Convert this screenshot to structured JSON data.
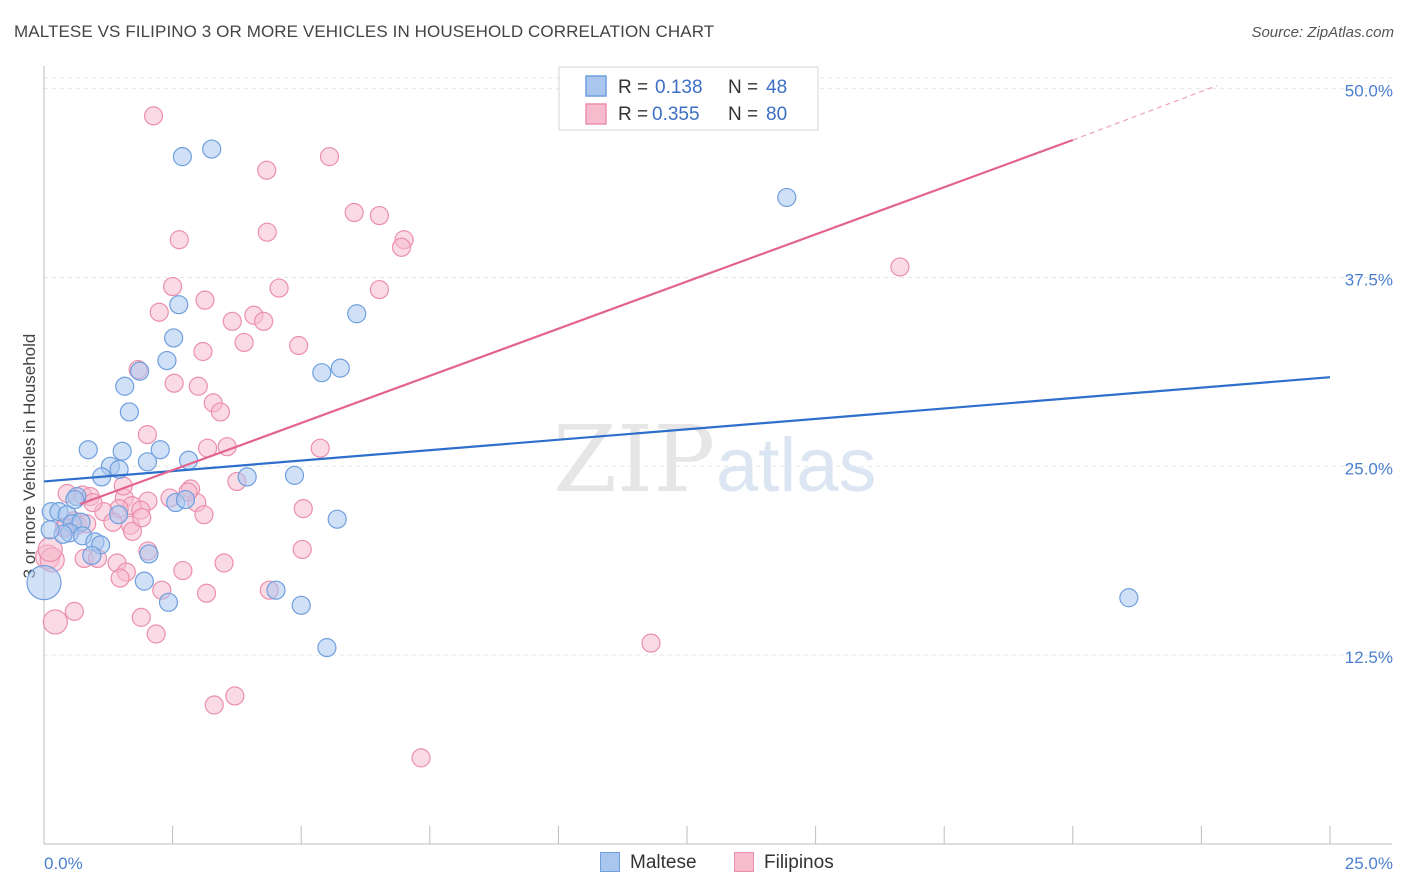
{
  "header": {
    "title": "MALTESE VS FILIPINO 3 OR MORE VEHICLES IN HOUSEHOLD CORRELATION CHART",
    "source": "Source: ZipAtlas.com"
  },
  "watermark": {
    "zip": "ZIP",
    "atlas": "atlas"
  },
  "legend": {
    "rows": [
      {
        "r_label": "R =",
        "r_value": "0.138",
        "n_label": "N =",
        "n_value": "48"
      },
      {
        "r_label": "R =",
        "r_value": "0.355",
        "n_label": "N =",
        "n_value": "80"
      }
    ]
  },
  "bottom_legend": {
    "maltese": "Maltese",
    "filipinos": "Filipinos"
  },
  "colors": {
    "maltese_fill": "#a9c6ee",
    "maltese_stroke": "#6f9fde",
    "maltese_line": "#2e6fcc",
    "filipino_fill": "#f6bccd",
    "filipino_stroke": "#ec8fad",
    "filipino_line": "#e3638f",
    "tick_text": "#4a7fcf",
    "grid": "#e6e6e6"
  },
  "chart_data": {
    "type": "scatter",
    "title": "MALTESE VS FILIPINO 3 OR MORE VEHICLES IN HOUSEHOLD CORRELATION CHART",
    "xlabel": "",
    "ylabel": "3 or more Vehicles in Household",
    "xlim": [
      0,
      25
    ],
    "ylim": [
      0,
      51.5
    ],
    "x_tick_labels": {
      "min": "0.0%",
      "max": "25.0%"
    },
    "y_ticks": [
      12.5,
      25.0,
      37.5,
      50.0
    ],
    "y_tick_labels": [
      "12.5%",
      "25.0%",
      "37.5%",
      "50.0%"
    ],
    "grid": true,
    "legend_position": "top-center",
    "series": [
      {
        "name": "Maltese",
        "R": 0.138,
        "N": 48,
        "trend": {
          "x": [
            0,
            25
          ],
          "y": [
            24.0,
            30.9
          ]
        },
        "points": [
          [
            2.69,
            45.5
          ],
          [
            3.26,
            46.0
          ],
          [
            14.44,
            42.8
          ],
          [
            2.62,
            35.7
          ],
          [
            6.08,
            35.1
          ],
          [
            2.52,
            33.5
          ],
          [
            2.39,
            32.0
          ],
          [
            1.86,
            31.3
          ],
          [
            5.4,
            31.2
          ],
          [
            5.76,
            31.5
          ],
          [
            1.57,
            30.3
          ],
          [
            1.66,
            28.6
          ],
          [
            0.86,
            26.1
          ],
          [
            1.52,
            26.0
          ],
          [
            2.26,
            26.1
          ],
          [
            1.29,
            25.0
          ],
          [
            1.46,
            24.8
          ],
          [
            2.01,
            25.3
          ],
          [
            2.81,
            25.4
          ],
          [
            1.12,
            24.3
          ],
          [
            3.95,
            24.3
          ],
          [
            4.87,
            24.4
          ],
          [
            0.64,
            23.0
          ],
          [
            2.56,
            22.6
          ],
          [
            2.75,
            22.8
          ],
          [
            0.14,
            22.0
          ],
          [
            0.29,
            22.0
          ],
          [
            0.45,
            21.8
          ],
          [
            1.45,
            21.8
          ],
          [
            0.55,
            21.2
          ],
          [
            0.72,
            21.3
          ],
          [
            5.7,
            21.5
          ],
          [
            0.5,
            20.6
          ],
          [
            0.37,
            20.5
          ],
          [
            0.75,
            20.4
          ],
          [
            0.99,
            20.0
          ],
          [
            1.1,
            19.8
          ],
          [
            0.93,
            19.1
          ],
          [
            2.04,
            19.2
          ],
          [
            0.0,
            17.3
          ],
          [
            1.95,
            17.4
          ],
          [
            4.51,
            16.8
          ],
          [
            2.42,
            16.0
          ],
          [
            5.0,
            15.8
          ],
          [
            21.09,
            16.3
          ],
          [
            5.5,
            13.0
          ],
          [
            0.12,
            20.8
          ],
          [
            0.6,
            22.8
          ]
        ]
      },
      {
        "name": "Filipinos",
        "R": 0.355,
        "N": 80,
        "trend": {
          "x": [
            0.7,
            20.0
          ],
          "y": [
            22.5,
            46.6
          ]
        },
        "trend_dashed": {
          "x": [
            20.0,
            22.8
          ],
          "y": [
            46.6,
            50.2
          ]
        },
        "points": [
          [
            2.13,
            48.2
          ],
          [
            4.33,
            44.6
          ],
          [
            5.55,
            45.5
          ],
          [
            6.03,
            41.8
          ],
          [
            6.52,
            41.6
          ],
          [
            4.34,
            40.5
          ],
          [
            2.63,
            40.0
          ],
          [
            7.0,
            40.0
          ],
          [
            6.95,
            39.5
          ],
          [
            16.64,
            38.2
          ],
          [
            4.57,
            36.8
          ],
          [
            2.5,
            36.9
          ],
          [
            6.52,
            36.7
          ],
          [
            3.13,
            36.0
          ],
          [
            2.24,
            35.2
          ],
          [
            4.08,
            35.0
          ],
          [
            3.66,
            34.6
          ],
          [
            4.27,
            34.6
          ],
          [
            3.89,
            33.2
          ],
          [
            4.95,
            33.0
          ],
          [
            3.09,
            32.6
          ],
          [
            1.83,
            31.4
          ],
          [
            2.53,
            30.5
          ],
          [
            3.0,
            30.3
          ],
          [
            3.29,
            29.2
          ],
          [
            3.43,
            28.6
          ],
          [
            2.01,
            27.1
          ],
          [
            3.18,
            26.2
          ],
          [
            3.56,
            26.3
          ],
          [
            5.37,
            26.2
          ],
          [
            2.85,
            23.5
          ],
          [
            0.75,
            23.1
          ],
          [
            0.9,
            23.0
          ],
          [
            1.56,
            22.9
          ],
          [
            2.02,
            22.7
          ],
          [
            1.71,
            22.4
          ],
          [
            1.88,
            22.1
          ],
          [
            1.46,
            22.2
          ],
          [
            1.16,
            22.0
          ],
          [
            2.97,
            22.6
          ],
          [
            3.11,
            21.8
          ],
          [
            5.04,
            22.2
          ],
          [
            0.58,
            21.4
          ],
          [
            0.65,
            21.1
          ],
          [
            1.34,
            21.3
          ],
          [
            0.4,
            21.0
          ],
          [
            1.68,
            21.1
          ],
          [
            0.83,
            21.2
          ],
          [
            0.07,
            19.0
          ],
          [
            0.16,
            18.8
          ],
          [
            0.78,
            18.9
          ],
          [
            1.04,
            18.9
          ],
          [
            1.42,
            18.6
          ],
          [
            2.02,
            19.4
          ],
          [
            5.02,
            19.5
          ],
          [
            3.5,
            18.6
          ],
          [
            1.6,
            18.0
          ],
          [
            2.7,
            18.1
          ],
          [
            1.48,
            17.6
          ],
          [
            0.12,
            19.5
          ],
          [
            2.29,
            16.8
          ],
          [
            3.16,
            16.6
          ],
          [
            4.38,
            16.8
          ],
          [
            0.59,
            15.4
          ],
          [
            1.89,
            15.0
          ],
          [
            0.22,
            14.7
          ],
          [
            2.18,
            13.9
          ],
          [
            11.8,
            13.3
          ],
          [
            3.71,
            9.8
          ],
          [
            3.31,
            9.2
          ],
          [
            7.33,
            5.7
          ],
          [
            1.54,
            23.7
          ],
          [
            0.45,
            23.2
          ],
          [
            1.72,
            20.7
          ],
          [
            1.9,
            21.6
          ],
          [
            2.45,
            22.9
          ],
          [
            3.75,
            24.0
          ],
          [
            2.8,
            23.3
          ],
          [
            0.95,
            22.6
          ],
          [
            0.4,
            20.9
          ]
        ]
      }
    ]
  }
}
